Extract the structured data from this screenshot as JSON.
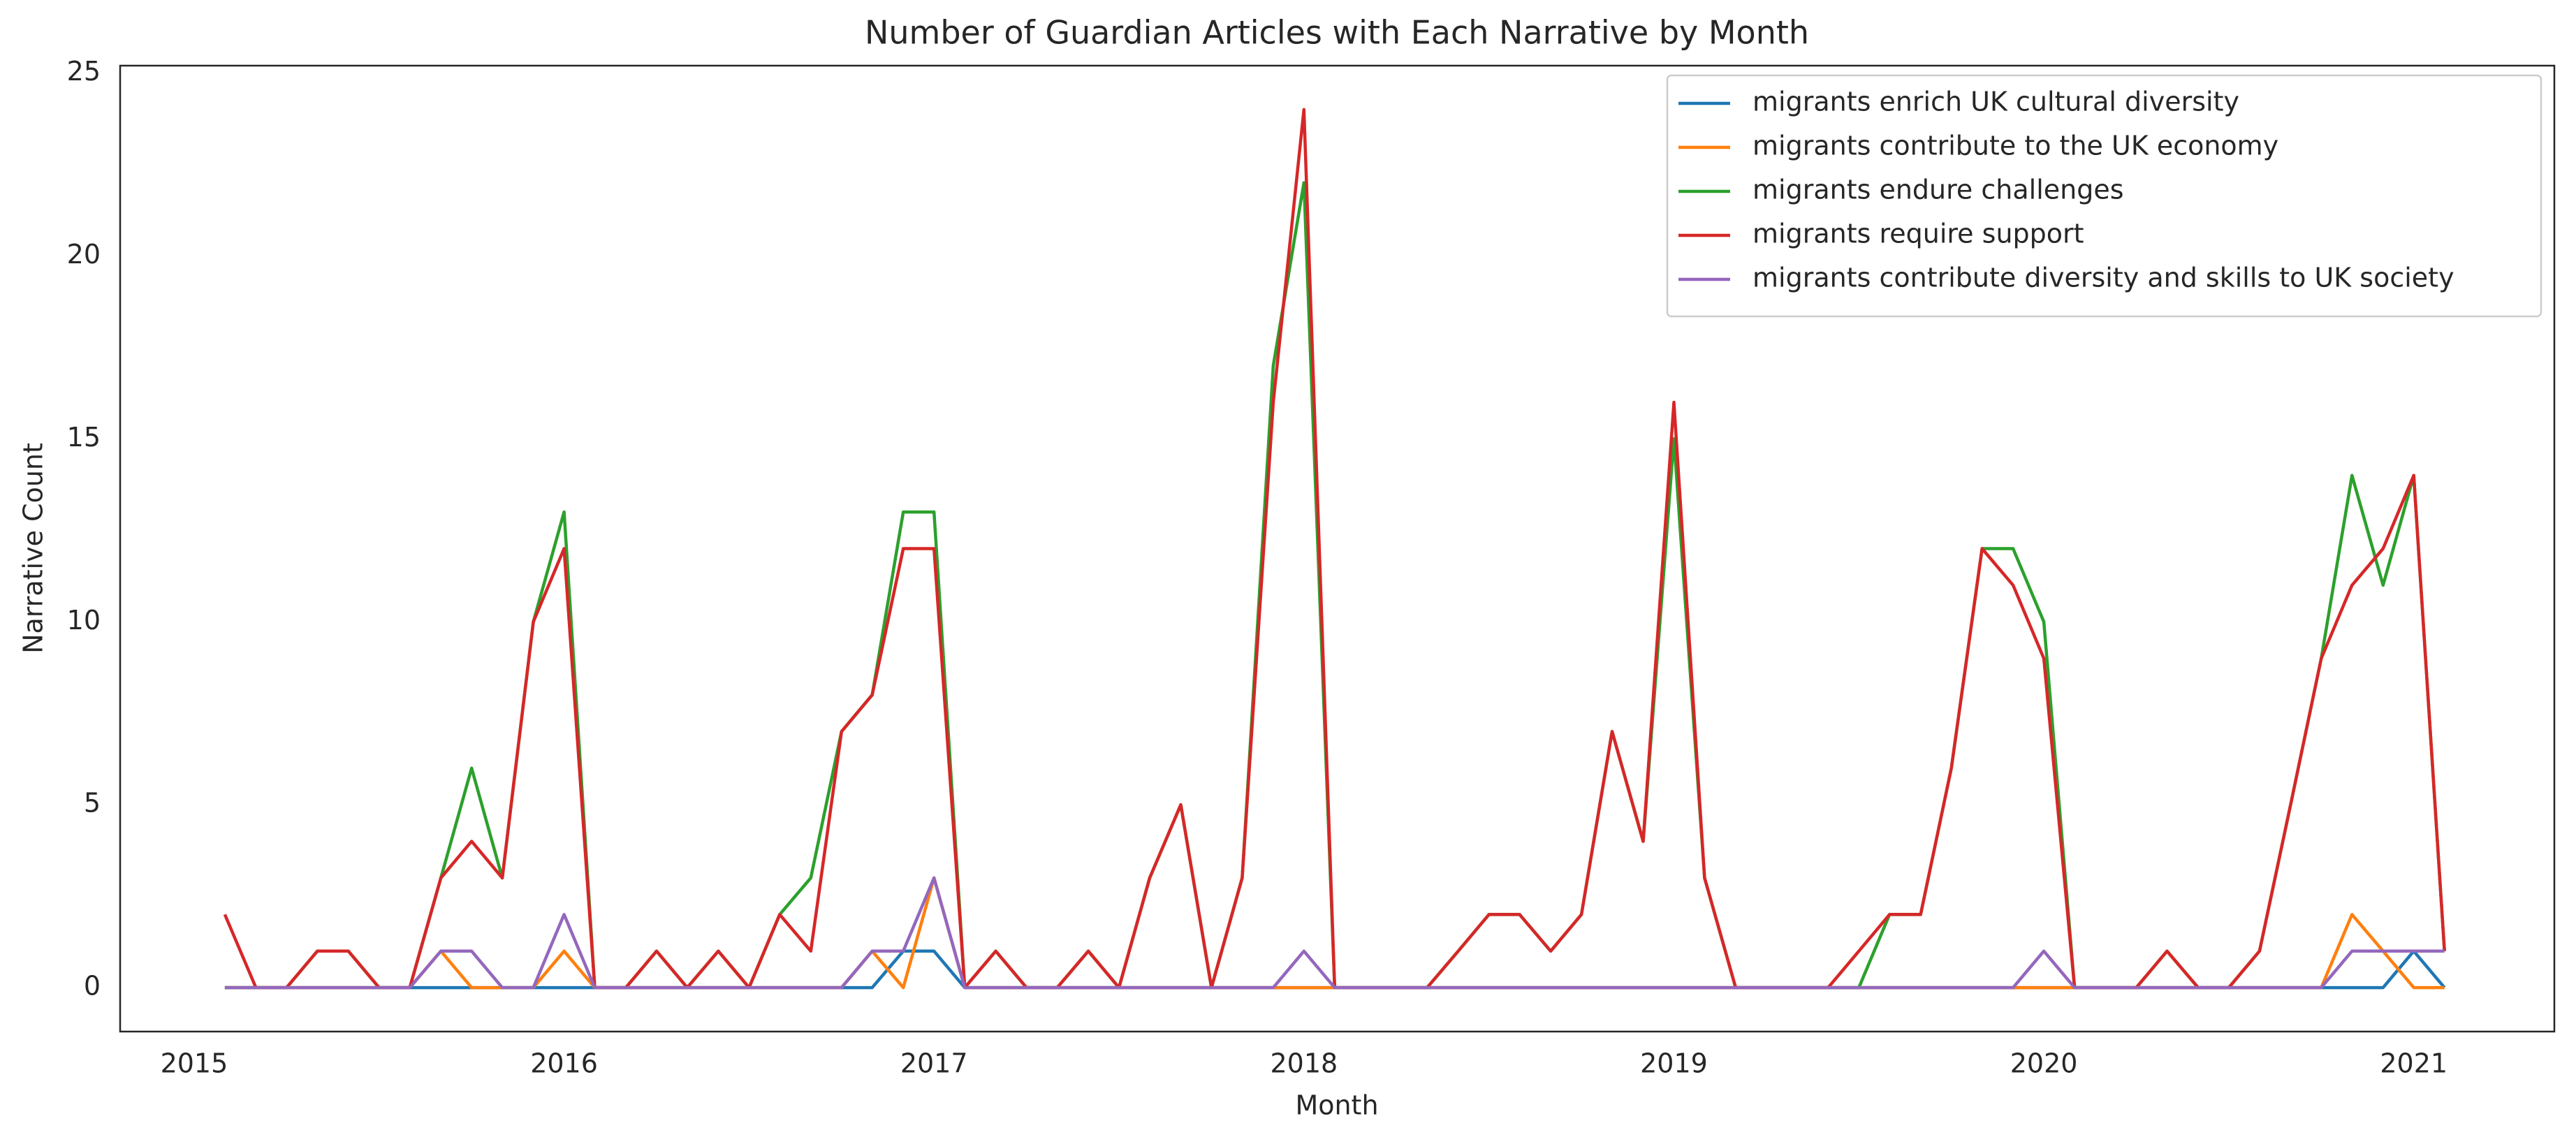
{
  "chart_data": {
    "type": "line",
    "title": "Number of Guardian Articles with Each Narrative by Month",
    "x_label": "Month",
    "y_label": "Narrative Count",
    "x": [
      2015.083,
      2015.167,
      2015.25,
      2015.333,
      2015.417,
      2015.5,
      2015.583,
      2015.667,
      2015.75,
      2015.833,
      2015.917,
      2016,
      2016.083,
      2016.167,
      2016.25,
      2016.333,
      2016.417,
      2016.5,
      2016.583,
      2016.667,
      2016.75,
      2016.833,
      2016.917,
      2017,
      2017.083,
      2017.167,
      2017.25,
      2017.333,
      2017.417,
      2017.5,
      2017.583,
      2017.667,
      2017.75,
      2017.833,
      2017.917,
      2018,
      2018.083,
      2018.167,
      2018.25,
      2018.333,
      2018.417,
      2018.5,
      2018.583,
      2018.667,
      2018.75,
      2018.833,
      2018.917,
      2019,
      2019.083,
      2019.167,
      2019.25,
      2019.333,
      2019.417,
      2019.5,
      2019.583,
      2019.667,
      2019.75,
      2019.833,
      2019.917,
      2020,
      2020.083,
      2020.167,
      2020.25,
      2020.333,
      2020.417,
      2020.5,
      2020.583,
      2020.667,
      2020.75,
      2020.833,
      2020.917,
      2021,
      2021.083
    ],
    "series": [
      {
        "name": "migrants enrich UK cultural diversity",
        "color": "#1f77b4",
        "values": [
          0,
          0,
          0,
          0,
          0,
          0,
          0,
          0,
          0,
          0,
          0,
          0,
          0,
          0,
          0,
          0,
          0,
          0,
          0,
          0,
          0,
          0,
          1,
          1,
          0,
          0,
          0,
          0,
          0,
          0,
          0,
          0,
          0,
          0,
          0,
          0,
          0,
          0,
          0,
          0,
          0,
          0,
          0,
          0,
          0,
          0,
          0,
          0,
          0,
          0,
          0,
          0,
          0,
          0,
          0,
          0,
          0,
          0,
          0,
          0,
          0,
          0,
          0,
          0,
          0,
          0,
          0,
          0,
          0,
          0,
          0,
          1,
          0
        ]
      },
      {
        "name": "migrants contribute to the UK economy",
        "color": "#ff7f0e",
        "values": [
          0,
          0,
          0,
          0,
          0,
          0,
          0,
          1,
          0,
          0,
          0,
          1,
          0,
          0,
          0,
          0,
          0,
          0,
          0,
          0,
          0,
          1,
          0,
          3,
          0,
          0,
          0,
          0,
          0,
          0,
          0,
          0,
          0,
          0,
          0,
          0,
          0,
          0,
          0,
          0,
          0,
          0,
          0,
          0,
          0,
          0,
          0,
          0,
          0,
          0,
          0,
          0,
          0,
          0,
          0,
          0,
          0,
          0,
          0,
          0,
          0,
          0,
          0,
          0,
          0,
          0,
          0,
          0,
          0,
          2,
          1,
          0,
          0
        ]
      },
      {
        "name": "migrants endure challenges",
        "color": "#2ca02c",
        "values": [
          0,
          0,
          0,
          1,
          1,
          0,
          0,
          3,
          6,
          3,
          10,
          13,
          0,
          0,
          1,
          0,
          1,
          0,
          2,
          3,
          7,
          8,
          13,
          13,
          0,
          1,
          0,
          0,
          1,
          0,
          3,
          5,
          0,
          3,
          17,
          22,
          0,
          0,
          0,
          0,
          1,
          2,
          2,
          1,
          2,
          7,
          4,
          15,
          3,
          0,
          0,
          0,
          0,
          0,
          2,
          2,
          6,
          12,
          12,
          10,
          0,
          0,
          0,
          1,
          0,
          0,
          1,
          5,
          9,
          14,
          11,
          14,
          1
        ]
      },
      {
        "name": "migrants require support",
        "color": "#d62728",
        "values": [
          2,
          0,
          0,
          1,
          1,
          0,
          0,
          3,
          4,
          3,
          10,
          12,
          0,
          0,
          1,
          0,
          1,
          0,
          2,
          1,
          7,
          8,
          12,
          12,
          0,
          1,
          0,
          0,
          1,
          0,
          3,
          5,
          0,
          3,
          16,
          24,
          0,
          0,
          0,
          0,
          1,
          2,
          2,
          1,
          2,
          7,
          4,
          16,
          3,
          0,
          0,
          0,
          0,
          1,
          2,
          2,
          6,
          12,
          11,
          9,
          0,
          0,
          0,
          1,
          0,
          0,
          1,
          5,
          9,
          11,
          12,
          14,
          1
        ]
      },
      {
        "name": "migrants contribute diversity and skills to UK society",
        "color": "#9467bd",
        "values": [
          0,
          0,
          0,
          0,
          0,
          0,
          0,
          1,
          1,
          0,
          0,
          2,
          0,
          0,
          0,
          0,
          0,
          0,
          0,
          0,
          0,
          1,
          1,
          3,
          0,
          0,
          0,
          0,
          0,
          0,
          0,
          0,
          0,
          0,
          0,
          1,
          0,
          0,
          0,
          0,
          0,
          0,
          0,
          0,
          0,
          0,
          0,
          0,
          0,
          0,
          0,
          0,
          0,
          0,
          0,
          0,
          0,
          0,
          0,
          1,
          0,
          0,
          0,
          0,
          0,
          0,
          0,
          0,
          0,
          1,
          1,
          1,
          1
        ]
      }
    ],
    "xlim": [
      2014.8,
      2021.38
    ],
    "xticks": [
      2015,
      2016,
      2017,
      2018,
      2019,
      2020,
      2021
    ],
    "ylim": [
      -1.2,
      25.2
    ],
    "yticks": [
      0,
      5,
      10,
      15,
      20,
      25
    ],
    "grid": false,
    "legend": "upper right"
  }
}
